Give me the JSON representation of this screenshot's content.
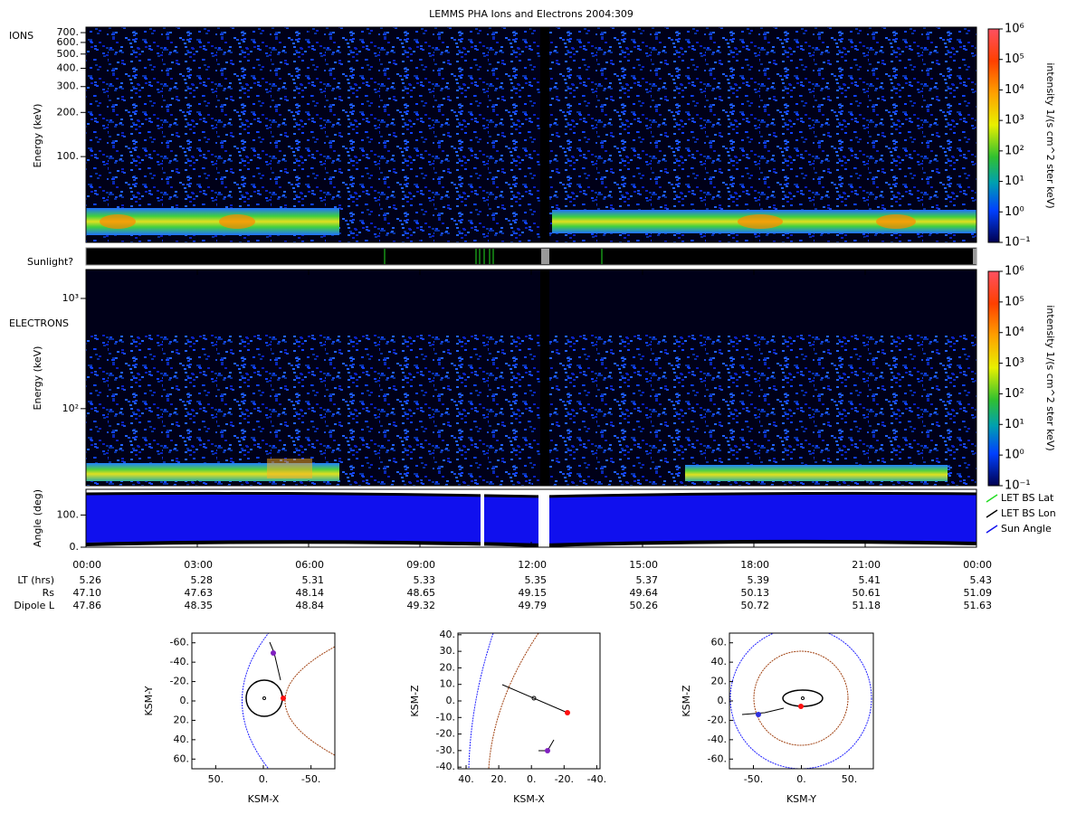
{
  "title": "LEMMS PHA Ions and Electrons  2004:309",
  "ions": {
    "label": "IONS",
    "y_label": "Energy (keV)",
    "ylim": [
      26,
      763
    ],
    "log": true,
    "yticks": [
      {
        "value": 700,
        "label": "700."
      },
      {
        "value": 600,
        "label": "600."
      },
      {
        "value": 500,
        "label": "500."
      },
      {
        "value": 400,
        "label": "400."
      },
      {
        "value": 300,
        "label": "300."
      },
      {
        "value": 200,
        "label": "200."
      },
      {
        "value": 100,
        "label": "100."
      }
    ]
  },
  "sunlight": {
    "label": "Sunlight?"
  },
  "electrons": {
    "label": "ELECTRONS",
    "y_label": "Energy (keV)",
    "ylim": [
      20,
      1830
    ],
    "log": true,
    "yticks": [
      {
        "value": 1000,
        "label": "10³"
      },
      {
        "value": 100,
        "label": "10²"
      }
    ]
  },
  "colorbar": {
    "label": "intensity 1/(s cm^2 ster keV)",
    "lim": [
      0.1,
      1000000
    ],
    "ticks": [
      {
        "value": 1000000,
        "label": "10⁶"
      },
      {
        "value": 100000,
        "label": "10⁵"
      },
      {
        "value": 10000,
        "label": "10⁴"
      },
      {
        "value": 1000,
        "label": "10³"
      },
      {
        "value": 100,
        "label": "10²"
      },
      {
        "value": 10,
        "label": "10¹"
      },
      {
        "value": 1,
        "label": "10⁰"
      },
      {
        "value": 0.1,
        "label": "10⁻¹"
      }
    ]
  },
  "angle": {
    "y_label": "Angle (deg)",
    "ylim": [
      0,
      180
    ],
    "yticks": [
      {
        "value": 100,
        "label": "100."
      },
      {
        "value": 0,
        "label": "0."
      }
    ],
    "legend": [
      {
        "name": "LET BS Lat",
        "color": "#22dd22"
      },
      {
        "name": "LET BS Lon",
        "color": "#000000"
      },
      {
        "name": "Sun Angle",
        "color": "#1010ee"
      }
    ]
  },
  "time_axis": {
    "xlim": [
      0,
      24
    ],
    "xticks": [
      {
        "value": 0,
        "label": "00:00"
      },
      {
        "value": 3,
        "label": "03:00"
      },
      {
        "value": 6,
        "label": "06:00"
      },
      {
        "value": 9,
        "label": "09:00"
      },
      {
        "value": 12,
        "label": "12:00"
      },
      {
        "value": 15,
        "label": "15:00"
      },
      {
        "value": 18,
        "label": "18:00"
      },
      {
        "value": 21,
        "label": "21:00"
      },
      {
        "value": 24,
        "label": "00:00"
      }
    ]
  },
  "ephemeris": [
    {
      "name": "LT (hrs)",
      "values": [
        "5.26",
        "5.28",
        "5.31",
        "5.33",
        "5.35",
        "5.37",
        "5.39",
        "5.41",
        "5.43"
      ]
    },
    {
      "name": "Rs",
      "values": [
        "47.10",
        "47.63",
        "48.14",
        "48.65",
        "49.15",
        "49.64",
        "50.13",
        "50.61",
        "51.09"
      ]
    },
    {
      "name": "Dipole L",
      "values": [
        "47.86",
        "48.35",
        "48.84",
        "49.32",
        "49.79",
        "50.26",
        "50.72",
        "51.18",
        "51.63"
      ]
    }
  ],
  "orbits": [
    {
      "x_label": "KSM-X",
      "y_label": "KSM-Y",
      "xlim": [
        75,
        -75
      ],
      "ylim": [
        -70,
        70
      ],
      "xticks": [
        {
          "value": 50,
          "label": "50."
        },
        {
          "value": 0,
          "label": "0."
        },
        {
          "value": -50,
          "label": "-50."
        }
      ],
      "yticks": [
        {
          "value": -60,
          "label": "-60."
        },
        {
          "value": -40,
          "label": "-40."
        },
        {
          "value": -20,
          "label": "-20."
        },
        {
          "value": 0,
          "label": "0."
        },
        {
          "value": 20,
          "label": "20."
        },
        {
          "value": 40,
          "label": "40."
        },
        {
          "value": 60,
          "label": "60."
        }
      ]
    },
    {
      "x_label": "KSM-X",
      "y_label": "KSM-Z",
      "xlim": [
        45,
        -42
      ],
      "ylim": [
        41,
        -41
      ],
      "xticks": [
        {
          "value": 40,
          "label": "40."
        },
        {
          "value": 20,
          "label": "20."
        },
        {
          "value": 0,
          "label": "0."
        },
        {
          "value": -20,
          "label": "-20."
        },
        {
          "value": -40,
          "label": "-40."
        }
      ],
      "yticks": [
        {
          "value": 40,
          "label": "40."
        },
        {
          "value": 30,
          "label": "30."
        },
        {
          "value": 20,
          "label": "20."
        },
        {
          "value": 10,
          "label": "10."
        },
        {
          "value": 0,
          "label": "0."
        },
        {
          "value": -10,
          "label": "-10."
        },
        {
          "value": -20,
          "label": "-20."
        },
        {
          "value": -30,
          "label": "-30."
        },
        {
          "value": -40,
          "label": "-40."
        }
      ]
    },
    {
      "x_label": "KSM-Y",
      "y_label": "KSM-Z",
      "xlim": [
        -75,
        75
      ],
      "ylim": [
        70,
        -70
      ],
      "xticks": [
        {
          "value": -50,
          "label": "-50."
        },
        {
          "value": 0,
          "label": "0."
        },
        {
          "value": 50,
          "label": "50."
        }
      ],
      "yticks": [
        {
          "value": 60,
          "label": "60."
        },
        {
          "value": 40,
          "label": "40."
        },
        {
          "value": 20,
          "label": "20."
        },
        {
          "value": 0,
          "label": "0."
        },
        {
          "value": -20,
          "label": "-20."
        },
        {
          "value": -40,
          "label": "-40."
        },
        {
          "value": -60,
          "label": "-60."
        }
      ]
    }
  ]
}
